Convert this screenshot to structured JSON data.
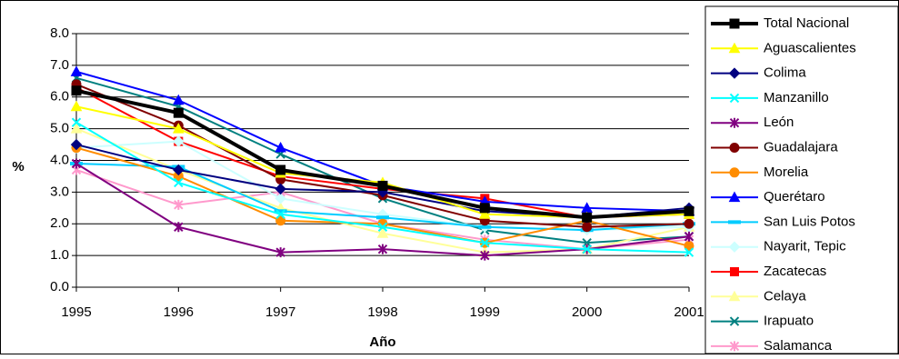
{
  "chart_data": {
    "type": "line",
    "xlabel": "Año",
    "ylabel": "%",
    "x": [
      "1995",
      "1996",
      "1997",
      "1998",
      "1999",
      "2000",
      "2001"
    ],
    "ylim": [
      0,
      8
    ],
    "y_ticks": [
      "0.0",
      "1.0",
      "2.0",
      "3.0",
      "4.0",
      "5.0",
      "6.0",
      "7.0",
      "8.0"
    ],
    "grid": "horizontal",
    "legend_position": "right",
    "series": [
      {
        "name": "Total Nacional",
        "color": "#000000",
        "marker": "square",
        "values": [
          6.2,
          5.5,
          3.7,
          3.2,
          2.5,
          2.2,
          2.4
        ]
      },
      {
        "name": "Aguascalientes",
        "color": "#FFFF00",
        "marker": "triangle",
        "values": [
          5.7,
          5.0,
          3.6,
          3.3,
          2.3,
          2.2,
          2.3
        ]
      },
      {
        "name": "Colima",
        "color": "#000080",
        "marker": "diamond",
        "values": [
          4.5,
          3.7,
          3.1,
          3.0,
          2.4,
          2.2,
          2.5
        ]
      },
      {
        "name": "Manzanillo",
        "color": "#00FFFF",
        "marker": "x",
        "values": [
          5.2,
          3.3,
          2.3,
          1.9,
          1.4,
          1.2,
          1.1
        ]
      },
      {
        "name": "León",
        "color": "#800080",
        "marker": "asterisk",
        "values": [
          3.9,
          1.9,
          1.1,
          1.2,
          1.0,
          1.2,
          1.6
        ]
      },
      {
        "name": "Guadalajara",
        "color": "#800000",
        "marker": "circle",
        "values": [
          6.4,
          5.1,
          3.4,
          2.9,
          2.1,
          1.9,
          2.0
        ]
      },
      {
        "name": "Morelia",
        "color": "#FF8C00",
        "marker": "circle",
        "values": [
          4.4,
          3.5,
          2.1,
          2.0,
          1.4,
          2.1,
          1.3
        ]
      },
      {
        "name": "Querétaro",
        "color": "#0000FF",
        "marker": "triangle",
        "values": [
          6.8,
          5.9,
          4.4,
          3.2,
          2.7,
          2.5,
          2.4
        ]
      },
      {
        "name": "San Luis Potos",
        "color": "#00CCFF",
        "marker": "dash",
        "values": [
          3.9,
          3.8,
          2.4,
          2.2,
          1.9,
          1.8,
          2.0
        ]
      },
      {
        "name": "Nayarit, Tepic",
        "color": "#CCFFFF",
        "marker": "diamond",
        "values": [
          4.4,
          4.6,
          2.8,
          2.3,
          1.9,
          1.8,
          1.9
        ]
      },
      {
        "name": "Zacatecas",
        "color": "#FF0000",
        "marker": "square",
        "values": [
          6.3,
          4.6,
          3.5,
          3.1,
          2.8,
          2.2,
          2.3
        ]
      },
      {
        "name": "Celaya",
        "color": "#FFFF99",
        "marker": "triangle",
        "values": [
          5.0,
          3.7,
          2.5,
          1.7,
          1.1,
          1.2,
          1.9
        ]
      },
      {
        "name": "Irapuato",
        "color": "#008080",
        "marker": "x",
        "values": [
          6.6,
          5.7,
          4.2,
          2.8,
          1.8,
          1.4,
          1.6
        ]
      },
      {
        "name": "Salamanca",
        "color": "#FF99CC",
        "marker": "asterisk",
        "values": [
          3.7,
          2.6,
          3.0,
          2.0,
          1.5,
          1.2,
          1.5
        ]
      }
    ]
  }
}
